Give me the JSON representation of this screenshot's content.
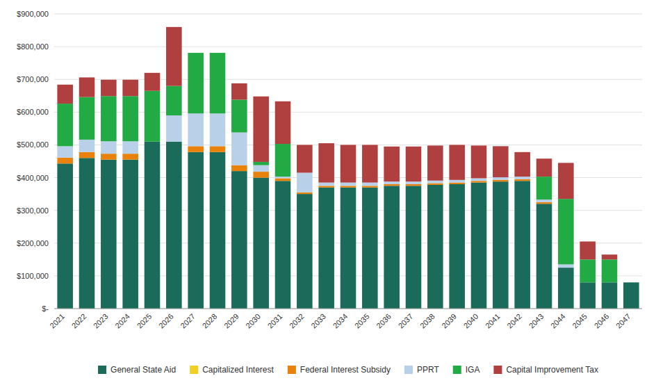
{
  "chart_data": {
    "type": "bar",
    "stacked": true,
    "grid": true,
    "legend": "bottom",
    "categories": [
      "2021",
      "2022",
      "2023",
      "2024",
      "2025",
      "2026",
      "2027",
      "2028",
      "2029",
      "2030",
      "2031",
      "2032",
      "2033",
      "2034",
      "2035",
      "2036",
      "2037",
      "2038",
      "2039",
      "2040",
      "2041",
      "2042",
      "2043",
      "2044",
      "2045",
      "2046",
      "2047"
    ],
    "series": [
      {
        "name": "General State Aid",
        "color": "#1a6b5a",
        "values": [
          443000,
          460000,
          455000,
          455000,
          510000,
          510000,
          478000,
          478000,
          420000,
          400000,
          390000,
          350000,
          370000,
          370000,
          370000,
          375000,
          375000,
          378000,
          380000,
          385000,
          388000,
          390000,
          320000,
          125000,
          80000,
          80000,
          80000
        ]
      },
      {
        "name": "Capitalized Interest",
        "color": "#f0d020",
        "values": [
          0,
          0,
          0,
          0,
          0,
          0,
          0,
          0,
          0,
          0,
          0,
          0,
          0,
          0,
          0,
          0,
          0,
          0,
          0,
          0,
          0,
          0,
          0,
          0,
          0,
          0,
          0
        ]
      },
      {
        "name": "Federal Interest Subsidy",
        "color": "#e8820a",
        "values": [
          18000,
          18000,
          18000,
          18000,
          0,
          0,
          18000,
          18000,
          18000,
          18000,
          8000,
          5000,
          5000,
          5000,
          5000,
          5000,
          5000,
          5000,
          5000,
          5000,
          5000,
          5000,
          5000,
          0,
          0,
          0,
          0
        ]
      },
      {
        "name": "PPRT",
        "color": "#b8d0e8",
        "values": [
          35000,
          38000,
          38000,
          38000,
          0,
          80000,
          100000,
          100000,
          100000,
          20000,
          5000,
          60000,
          10000,
          10000,
          10000,
          8000,
          8000,
          8000,
          8000,
          8000,
          8000,
          8000,
          8000,
          10000,
          0,
          0,
          0
        ]
      },
      {
        "name": "IGA",
        "color": "#22aa44",
        "values": [
          130000,
          130000,
          138000,
          138000,
          155000,
          90000,
          185000,
          185000,
          100000,
          10000,
          100000,
          0,
          0,
          0,
          0,
          0,
          0,
          0,
          0,
          0,
          0,
          0,
          70000,
          200000,
          70000,
          70000,
          0
        ]
      },
      {
        "name": "Capital Improvement Tax",
        "color": "#b04040",
        "values": [
          58000,
          60000,
          50000,
          50000,
          55000,
          180000,
          0,
          0,
          50000,
          200000,
          130000,
          85000,
          120000,
          115000,
          115000,
          107000,
          107000,
          107000,
          107000,
          100000,
          95000,
          75000,
          55000,
          110000,
          55000,
          15000,
          0
        ]
      }
    ],
    "ylim": [
      0,
      900000
    ],
    "yticks": [
      {
        "value": 0,
        "label": "$-"
      },
      {
        "value": 100000,
        "label": "$100,000"
      },
      {
        "value": 200000,
        "label": "$200,000"
      },
      {
        "value": 300000,
        "label": "$300,000"
      },
      {
        "value": 400000,
        "label": "$400,000"
      },
      {
        "value": 500000,
        "label": "$500,000"
      },
      {
        "value": 600000,
        "label": "$600,000"
      },
      {
        "value": 700000,
        "label": "$700,000"
      },
      {
        "value": 800000,
        "label": "$800,000"
      },
      {
        "value": 900000,
        "label": "$900,000"
      }
    ]
  }
}
